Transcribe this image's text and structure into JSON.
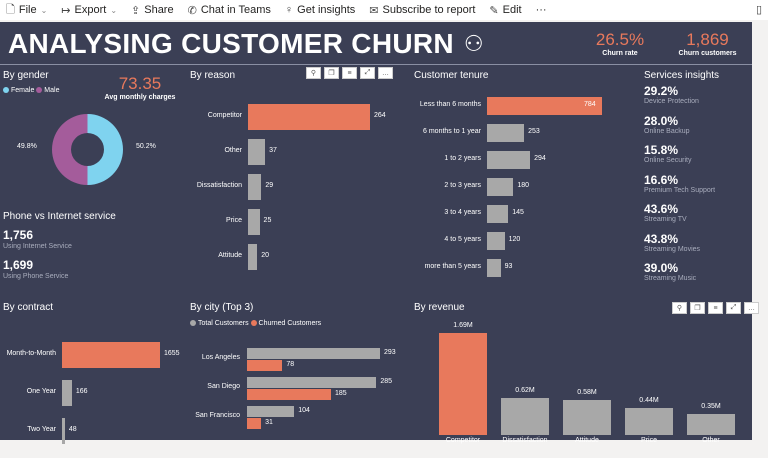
{
  "toolbar": {
    "items": [
      {
        "icon": "file-icon",
        "label": "File"
      },
      {
        "icon": "export-icon",
        "label": "Export"
      },
      {
        "icon": "share-icon",
        "label": "Share"
      },
      {
        "icon": "teams-icon",
        "label": "Chat in Teams"
      },
      {
        "icon": "lightbulb-icon",
        "label": "Get insights"
      },
      {
        "icon": "subscribe-icon",
        "label": "Subscribe to report"
      },
      {
        "icon": "pencil-icon",
        "label": "Edit"
      }
    ],
    "more": "···"
  },
  "header": {
    "title": "ANALYSING CUSTOMER CHURN",
    "churn_rate": "26.5%",
    "churn_rate_label": "Churn rate",
    "churn_customers": "1,869",
    "churn_customers_label": "Churn customers"
  },
  "colors": {
    "background": "#3b3f55",
    "accent": "#e8795c",
    "gray": "#a8a8a8",
    "female": "#7fd3ef",
    "male": "#a45c9b"
  },
  "gender": {
    "title": "By gender",
    "legend": [
      "Female",
      "Male"
    ],
    "avg": "73.35",
    "avg_label": "Avg monthly charges",
    "female_pct": "50.2%",
    "male_pct": "49.8%"
  },
  "phone": {
    "title": "Phone vs Internet service",
    "internet": "1,756",
    "internet_label": "Using Internet Service",
    "phone": "1,699",
    "phone_label": "Using Phone Service"
  },
  "services": {
    "title": "Services insights",
    "items": [
      {
        "v": "29.2%",
        "l": "Device Protection"
      },
      {
        "v": "28.0%",
        "l": "Online Backup"
      },
      {
        "v": "15.8%",
        "l": "Online Security"
      },
      {
        "v": "16.6%",
        "l": "Premium Tech Support"
      },
      {
        "v": "43.6%",
        "l": "Streaming TV"
      },
      {
        "v": "43.8%",
        "l": "Streaming Movies"
      },
      {
        "v": "39.0%",
        "l": "Streaming Music"
      }
    ]
  },
  "chart_data": [
    {
      "id": "reason",
      "type": "bar",
      "title": "By reason",
      "categories": [
        "Competitor",
        "Other",
        "Dissatisfaction",
        "Price",
        "Attitude"
      ],
      "values": [
        264,
        37,
        29,
        25,
        20
      ]
    },
    {
      "id": "tenure",
      "type": "bar",
      "title": "Customer tenure",
      "categories": [
        "Less than 6 months",
        "6 months to 1 year",
        "1 to 2 years",
        "2 to 3 years",
        "3 to 4 years",
        "4 to 5 years",
        "more than 5 years"
      ],
      "values": [
        784,
        253,
        294,
        180,
        145,
        120,
        93
      ]
    },
    {
      "id": "contract",
      "type": "bar",
      "title": "By contract",
      "categories": [
        "Month-to-Month",
        "One Year",
        "Two Year"
      ],
      "values": [
        1655,
        166,
        48
      ]
    },
    {
      "id": "city",
      "type": "bar",
      "title": "By city (Top 3)",
      "categories": [
        "Los Angeles",
        "San Diego",
        "San Francisco"
      ],
      "series": [
        {
          "name": "Total Customers",
          "values": [
            293,
            285,
            104
          ]
        },
        {
          "name": "Churned Customers",
          "values": [
            78,
            185,
            31
          ]
        }
      ]
    },
    {
      "id": "revenue",
      "type": "bar",
      "title": "By revenue",
      "categories": [
        "Competitor",
        "Dissatisfaction",
        "Attitude",
        "Price",
        "Other"
      ],
      "values": [
        1.69,
        0.62,
        0.58,
        0.44,
        0.35
      ],
      "labels": [
        "1.69M",
        "0.62M",
        "0.58M",
        "0.44M",
        "0.35M"
      ]
    },
    {
      "id": "gender",
      "type": "pie",
      "categories": [
        "Female",
        "Male"
      ],
      "values": [
        50.2,
        49.8
      ]
    }
  ]
}
